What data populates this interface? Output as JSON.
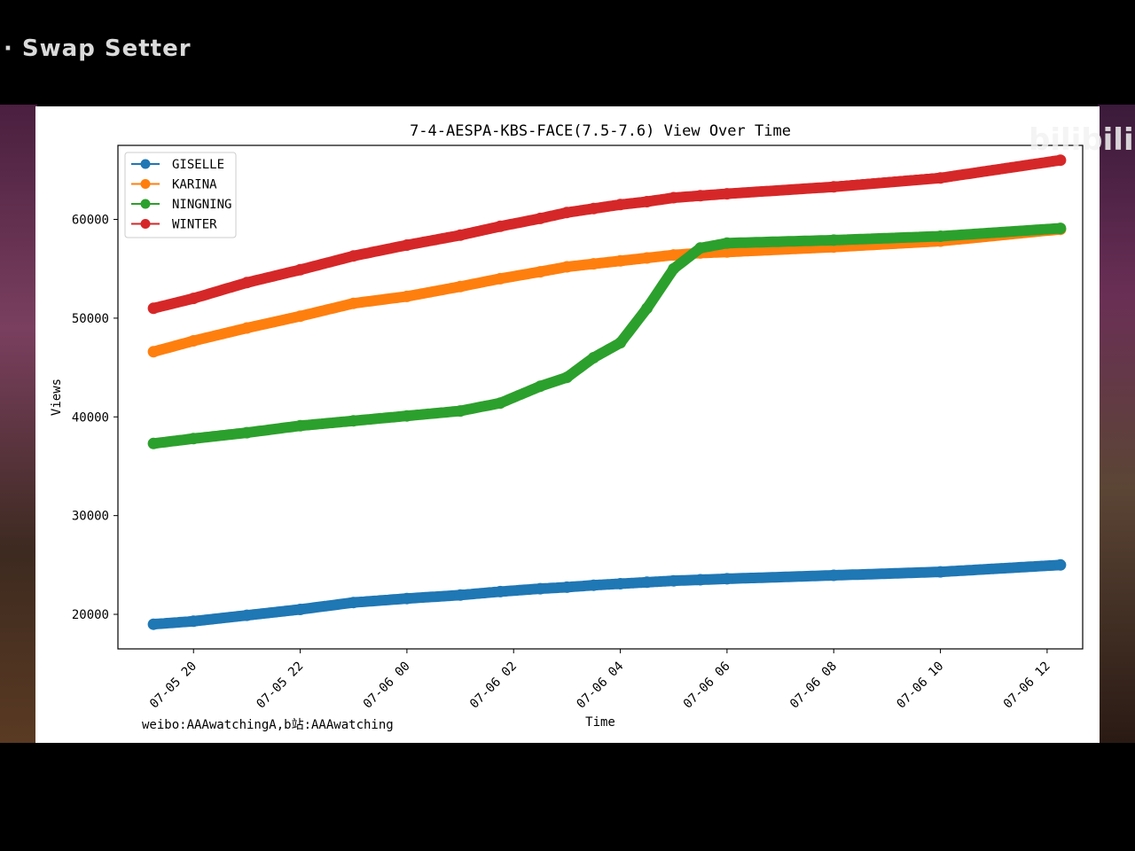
{
  "overlay": {
    "top_caption": "· Swap Setter",
    "logo": "bilibili"
  },
  "credit": "weibo:AAAwatchingA,b站:AAAwatching",
  "chart_data": {
    "type": "line",
    "title": "7-4-AESPA-KBS-FACE(7.5-7.6) View Over Time",
    "xlabel": "Time",
    "ylabel": "Views",
    "xlim": [
      "07-05 18:35",
      "07-06 12:40"
    ],
    "ylim": [
      16500,
      67500
    ],
    "x_ticks": [
      "07-05 20",
      "07-05 22",
      "07-06 00",
      "07-06 02",
      "07-06 04",
      "07-06 06",
      "07-06 08",
      "07-06 10",
      "07-06 12"
    ],
    "y_ticks": [
      20000,
      30000,
      40000,
      50000,
      60000
    ],
    "grid": false,
    "legend_position": "top-left",
    "x": [
      "07-05 19:15",
      "07-05 20:00",
      "07-05 21:00",
      "07-05 22:00",
      "07-05 23:00",
      "07-06 00:00",
      "07-06 01:00",
      "07-06 01:45",
      "07-06 02:30",
      "07-06 03:00",
      "07-06 03:30",
      "07-06 04:00",
      "07-06 04:30",
      "07-06 05:00",
      "07-06 05:30",
      "07-06 06:00",
      "07-06 08:00",
      "07-06 10:00",
      "07-06 12:15"
    ],
    "series": [
      {
        "name": "GISELLE",
        "color": "#1f77b4",
        "values": [
          19000,
          19300,
          19900,
          20500,
          21200,
          21600,
          21950,
          22300,
          22600,
          22750,
          22950,
          23100,
          23250,
          23400,
          23500,
          23600,
          23950,
          24300,
          25000
        ]
      },
      {
        "name": "KARINA",
        "color": "#ff7f0e",
        "values": [
          46600,
          47700,
          49000,
          50200,
          51500,
          52200,
          53200,
          54000,
          54700,
          55200,
          55500,
          55800,
          56100,
          56400,
          56600,
          56700,
          57200,
          57800,
          59000
        ]
      },
      {
        "name": "NINGNING",
        "color": "#2ca02c",
        "values": [
          37300,
          37800,
          38400,
          39100,
          39600,
          40100,
          40600,
          41400,
          43100,
          44000,
          46000,
          47500,
          51000,
          55000,
          57100,
          57600,
          57900,
          58300,
          59100
        ]
      },
      {
        "name": "WINTER",
        "color": "#d62728",
        "values": [
          51000,
          52000,
          53600,
          54900,
          56300,
          57400,
          58400,
          59300,
          60100,
          60700,
          61100,
          61500,
          61800,
          62200,
          62400,
          62600,
          63300,
          64200,
          66000
        ]
      }
    ]
  }
}
